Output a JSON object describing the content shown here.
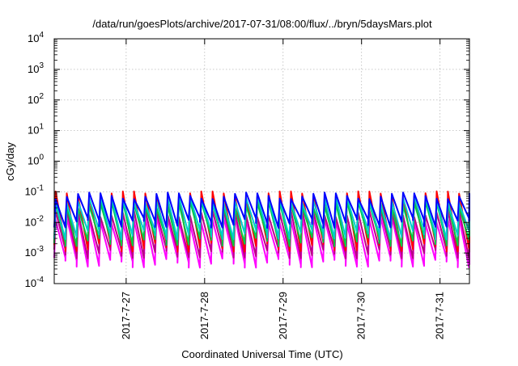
{
  "chart_data": {
    "type": "line",
    "title": "/data/run/goesPlots/archive/2017-07-31/08:00/flux/../bryn/5daysMars.plot",
    "xlabel": "Coordinated Universal Time (UTC)",
    "ylabel": "cGy/day",
    "x_ticks": [
      "2017-7-27",
      "2017-7-28",
      "2017-7-29",
      "2017-7-30",
      "2017-7-31"
    ],
    "xlim": [
      "2017-07-26T02:00",
      "2017-07-31T09:00"
    ],
    "y_scale": "log",
    "ylim": [
      0.0001,
      10000
    ],
    "y_tick_exponents": [
      "4",
      "3",
      "2",
      "1",
      "0",
      "-1",
      "-2",
      "-3",
      "-4"
    ],
    "grid": true,
    "legend": "none",
    "pattern": "sawtooth, about 7 cycles per day",
    "series": [
      {
        "color": "#ff00ff",
        "low": 0.0006,
        "high": 0.015
      },
      {
        "color": "#bb0088",
        "low": 0.0012,
        "high": 0.025
      },
      {
        "color": "#ff0000",
        "low": 0.002,
        "high": 0.105
      },
      {
        "color": "#00cc44",
        "low": 0.003,
        "high": 0.05
      },
      {
        "color": "#00cccc",
        "low": 0.005,
        "high": 0.07
      },
      {
        "color": "#0000ff",
        "low": 0.012,
        "high": 0.095
      }
    ]
  }
}
